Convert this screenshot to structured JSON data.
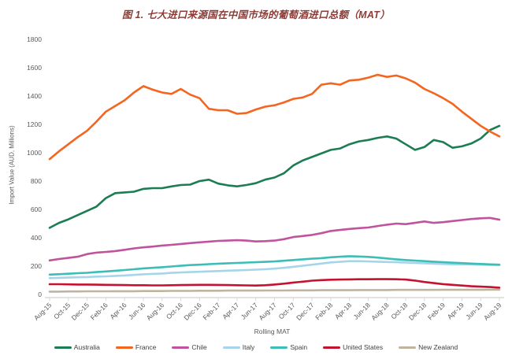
{
  "figure": {
    "background": "#ffffff"
  },
  "colors": {
    "title_text": "#8e3b35",
    "axis_text": "#595959",
    "axis_line": "#d9d9d9"
  },
  "chart_data": {
    "type": "line",
    "title": "图 1. 七大进口来源国在中国市场的葡萄酒进口总额（MAT）",
    "xlabel": "Rolling MAT",
    "ylabel": "Import Value (AUD, Millions)",
    "ylim": [
      0,
      1800
    ],
    "ytick_step": 200,
    "x_tick_every": 2,
    "grid": false,
    "legend_position": "bottom",
    "x": [
      "Aug-15",
      "Sep-15",
      "Oct-15",
      "Nov-15",
      "Dec-15",
      "Jan-16",
      "Feb-16",
      "Mar-16",
      "Apr-16",
      "May-16",
      "Jun-16",
      "Jul-16",
      "Aug-16",
      "Sep-16",
      "Oct-16",
      "Nov-16",
      "Dec-16",
      "Jan-17",
      "Feb-17",
      "Mar-17",
      "Apr-17",
      "May-17",
      "Jun-17",
      "Jul-17",
      "Aug-17",
      "Sep-17",
      "Oct-17",
      "Nov-17",
      "Dec-17",
      "Jan-18",
      "Feb-18",
      "Mar-18",
      "Apr-18",
      "May-18",
      "Jun-18",
      "Jul-18",
      "Aug-18",
      "Sep-18",
      "Oct-18",
      "Nov-18",
      "Dec-18",
      "Jan-19",
      "Feb-19",
      "Mar-19",
      "Apr-19",
      "May-19",
      "Jun-19",
      "Jul-19",
      "Aug-19"
    ],
    "series": [
      {
        "name": "Australia",
        "color": "#1b7d51",
        "values": [
          470,
          505,
          530,
          560,
          590,
          620,
          680,
          715,
          720,
          725,
          745,
          750,
          750,
          762,
          772,
          775,
          800,
          810,
          782,
          770,
          763,
          772,
          785,
          810,
          825,
          855,
          910,
          945,
          970,
          995,
          1020,
          1030,
          1060,
          1080,
          1090,
          1105,
          1115,
          1100,
          1060,
          1020,
          1040,
          1090,
          1075,
          1035,
          1045,
          1065,
          1100,
          1160,
          1190
        ]
      },
      {
        "name": "France",
        "color": "#f4661f",
        "values": [
          955,
          1010,
          1060,
          1110,
          1155,
          1220,
          1290,
          1330,
          1370,
          1425,
          1470,
          1445,
          1425,
          1415,
          1450,
          1410,
          1385,
          1310,
          1300,
          1300,
          1275,
          1280,
          1305,
          1325,
          1335,
          1355,
          1380,
          1390,
          1415,
          1480,
          1490,
          1480,
          1510,
          1515,
          1530,
          1550,
          1535,
          1545,
          1525,
          1495,
          1450,
          1420,
          1385,
          1345,
          1290,
          1240,
          1190,
          1150,
          1115
        ]
      },
      {
        "name": "Chile",
        "color": "#c0539e",
        "values": [
          240,
          250,
          258,
          266,
          285,
          295,
          300,
          306,
          315,
          325,
          332,
          338,
          345,
          350,
          356,
          362,
          368,
          373,
          378,
          380,
          383,
          380,
          374,
          376,
          380,
          390,
          405,
          412,
          420,
          432,
          448,
          455,
          462,
          468,
          472,
          483,
          492,
          500,
          496,
          505,
          515,
          505,
          510,
          518,
          525,
          532,
          537,
          540,
          528
        ]
      },
      {
        "name": "Italy",
        "color": "#a6d5ea",
        "values": [
          115,
          117,
          119,
          121,
          123,
          126,
          128,
          131,
          134,
          138,
          142,
          145,
          148,
          152,
          155,
          158,
          160,
          163,
          165,
          168,
          170,
          172,
          175,
          178,
          182,
          188,
          195,
          202,
          210,
          218,
          226,
          230,
          235,
          235,
          233,
          231,
          229,
          227,
          225,
          222,
          220,
          217,
          215,
          213,
          212,
          211,
          210,
          209,
          208
        ]
      },
      {
        "name": "Spain",
        "color": "#3dbdb7",
        "values": [
          140,
          143,
          146,
          150,
          153,
          158,
          162,
          167,
          172,
          178,
          184,
          188,
          192,
          197,
          202,
          207,
          210,
          214,
          217,
          220,
          222,
          225,
          227,
          230,
          233,
          238,
          243,
          248,
          252,
          256,
          262,
          266,
          270,
          268,
          265,
          260,
          254,
          248,
          243,
          239,
          235,
          231,
          228,
          224,
          221,
          218,
          215,
          212,
          210
        ]
      },
      {
        "name": "United States",
        "color": "#c41230",
        "values": [
          72,
          72,
          71,
          70,
          70,
          69,
          68,
          67,
          66,
          65,
          65,
          64,
          64,
          65,
          66,
          67,
          68,
          68,
          67,
          66,
          65,
          64,
          63,
          65,
          70,
          76,
          84,
          90,
          97,
          101,
          104,
          105,
          106,
          107,
          107,
          108,
          108,
          107,
          105,
          98,
          88,
          80,
          73,
          68,
          63,
          58,
          55,
          52,
          48
        ]
      },
      {
        "name": "New Zealand",
        "color": "#c0b49e",
        "values": [
          20,
          20,
          21,
          21,
          22,
          22,
          22,
          23,
          23,
          23,
          24,
          24,
          24,
          25,
          25,
          25,
          26,
          26,
          26,
          27,
          27,
          27,
          27,
          28,
          28,
          28,
          29,
          29,
          29,
          30,
          30,
          30,
          30,
          31,
          31,
          31,
          31,
          32,
          32,
          32,
          32,
          32,
          33,
          33,
          33,
          33,
          33,
          34,
          34
        ]
      }
    ]
  }
}
